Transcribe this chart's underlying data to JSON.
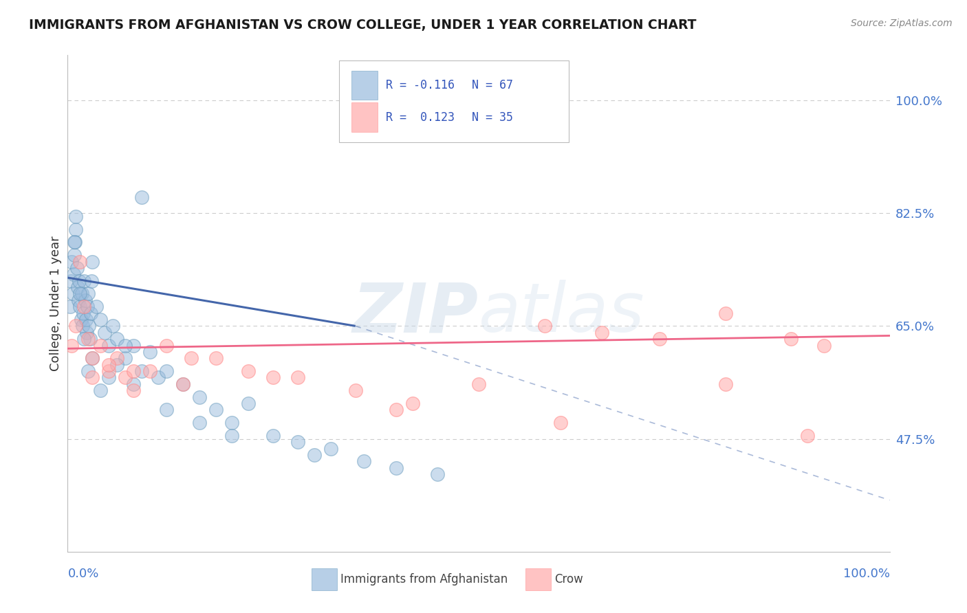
{
  "title": "IMMIGRANTS FROM AFGHANISTAN VS CROW COLLEGE, UNDER 1 YEAR CORRELATION CHART",
  "source_text": "Source: ZipAtlas.com",
  "ylabel": "College, Under 1 year",
  "watermark_zip": "ZIP",
  "watermark_atlas": "atlas",
  "legend_blue_r": "R = -0.116",
  "legend_blue_n": "N = 67",
  "legend_pink_r": "R =  0.123",
  "legend_pink_n": "N = 35",
  "legend_blue_label": "Immigrants from Afghanistan",
  "legend_pink_label": "Crow",
  "ytick_labels": [
    "47.5%",
    "65.0%",
    "82.5%",
    "100.0%"
  ],
  "ytick_vals": [
    47.5,
    65.0,
    82.5,
    100.0
  ],
  "ylim_min": 30.0,
  "ylim_max": 107.0,
  "xlim_min": 0.0,
  "xlim_max": 100.0,
  "blue_fill": "#99BBDD",
  "blue_edge": "#6699BB",
  "blue_line": "#4466AA",
  "pink_fill": "#FFAAAA",
  "pink_edge": "#FF8888",
  "pink_line": "#EE6688",
  "grid_color": "#CCCCCC",
  "bg_color": "#FFFFFF",
  "blue_scatter_x": [
    0.3,
    0.4,
    0.5,
    0.6,
    0.7,
    0.8,
    0.9,
    1.0,
    1.1,
    1.2,
    1.3,
    1.4,
    1.5,
    1.6,
    1.7,
    1.8,
    1.9,
    2.0,
    2.1,
    2.2,
    2.3,
    2.4,
    2.5,
    2.6,
    2.7,
    2.8,
    2.9,
    3.0,
    3.5,
    4.0,
    4.5,
    5.0,
    5.5,
    6.0,
    7.0,
    8.0,
    9.0,
    10.0,
    11.0,
    12.0,
    14.0,
    16.0,
    18.0,
    20.0,
    22.0,
    25.0,
    28.0,
    32.0,
    36.0,
    40.0,
    45.0,
    9.0,
    2.0,
    1.5,
    1.0,
    0.8,
    3.0,
    2.5,
    4.0,
    5.0,
    6.0,
    7.0,
    8.0,
    12.0,
    16.0,
    20.0,
    30.0
  ],
  "blue_scatter_y": [
    68.0,
    72.0,
    75.0,
    70.0,
    73.0,
    76.0,
    78.0,
    80.0,
    74.0,
    71.0,
    69.0,
    72.0,
    68.0,
    66.0,
    70.0,
    65.0,
    67.0,
    72.0,
    69.0,
    66.0,
    64.0,
    68.0,
    70.0,
    65.0,
    63.0,
    67.0,
    72.0,
    75.0,
    68.0,
    66.0,
    64.0,
    62.0,
    65.0,
    63.0,
    60.0,
    62.0,
    58.0,
    61.0,
    57.0,
    58.0,
    56.0,
    54.0,
    52.0,
    50.0,
    53.0,
    48.0,
    47.0,
    46.0,
    44.0,
    43.0,
    42.0,
    85.0,
    63.0,
    70.0,
    82.0,
    78.0,
    60.0,
    58.0,
    55.0,
    57.0,
    59.0,
    62.0,
    56.0,
    52.0,
    50.0,
    48.0,
    45.0
  ],
  "pink_scatter_x": [
    0.5,
    1.0,
    1.5,
    2.0,
    2.5,
    3.0,
    4.0,
    5.0,
    6.0,
    7.0,
    8.0,
    10.0,
    12.0,
    14.0,
    18.0,
    22.0,
    28.0,
    35.0,
    42.0,
    50.0,
    58.0,
    65.0,
    72.0,
    80.0,
    88.0,
    92.0,
    3.0,
    5.0,
    8.0,
    15.0,
    25.0,
    40.0,
    60.0,
    80.0,
    90.0
  ],
  "pink_scatter_y": [
    62.0,
    65.0,
    75.0,
    68.0,
    63.0,
    60.0,
    62.0,
    58.0,
    60.0,
    57.0,
    55.0,
    58.0,
    62.0,
    56.0,
    60.0,
    58.0,
    57.0,
    55.0,
    53.0,
    56.0,
    65.0,
    64.0,
    63.0,
    67.0,
    63.0,
    62.0,
    57.0,
    59.0,
    58.0,
    60.0,
    57.0,
    52.0,
    50.0,
    56.0,
    48.0
  ],
  "blue_line_x0": 0.0,
  "blue_line_y0": 72.5,
  "blue_line_x1": 35.0,
  "blue_line_y1": 65.0,
  "blue_dash_x0": 35.0,
  "blue_dash_y0": 65.0,
  "blue_dash_x1": 100.0,
  "blue_dash_y1": 38.0,
  "pink_line_x0": 0.0,
  "pink_line_y0": 61.5,
  "pink_line_x1": 100.0,
  "pink_line_y1": 63.5
}
